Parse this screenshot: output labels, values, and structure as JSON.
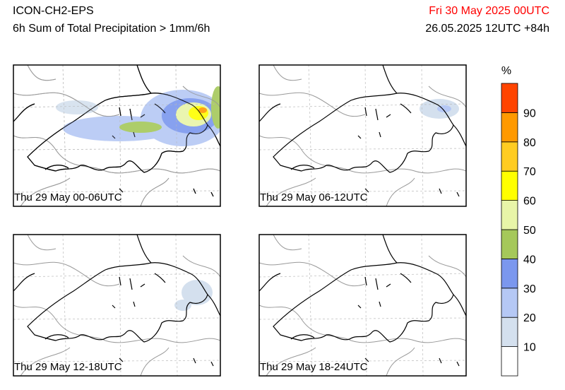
{
  "header": {
    "title": "ICON-CH2-EPS",
    "subtitle": "6h Sum of Total Precipitation > 1mm/6h",
    "valid_time": "Fri 30 May 2025 00UTC",
    "run": "26.05.2025 12UTC +84h"
  },
  "panels": [
    {
      "label": "Thu 29 May 00-06UTC"
    },
    {
      "label": "Thu 29 May 06-12UTC"
    },
    {
      "label": "Thu 29 May 12-18UTC"
    },
    {
      "label": "Thu 29 May 18-24UTC"
    }
  ],
  "colorbar": {
    "unit": "%",
    "colors": [
      "#ffffff",
      "#d4e0ee",
      "#b5c8f5",
      "#7b97ee",
      "#a5c85a",
      "#e8f5a8",
      "#ffff00",
      "#ffcc22",
      "#ff9900",
      "#ff4400"
    ],
    "ticks": [
      10,
      20,
      30,
      40,
      50,
      60,
      70,
      80,
      90
    ]
  }
}
